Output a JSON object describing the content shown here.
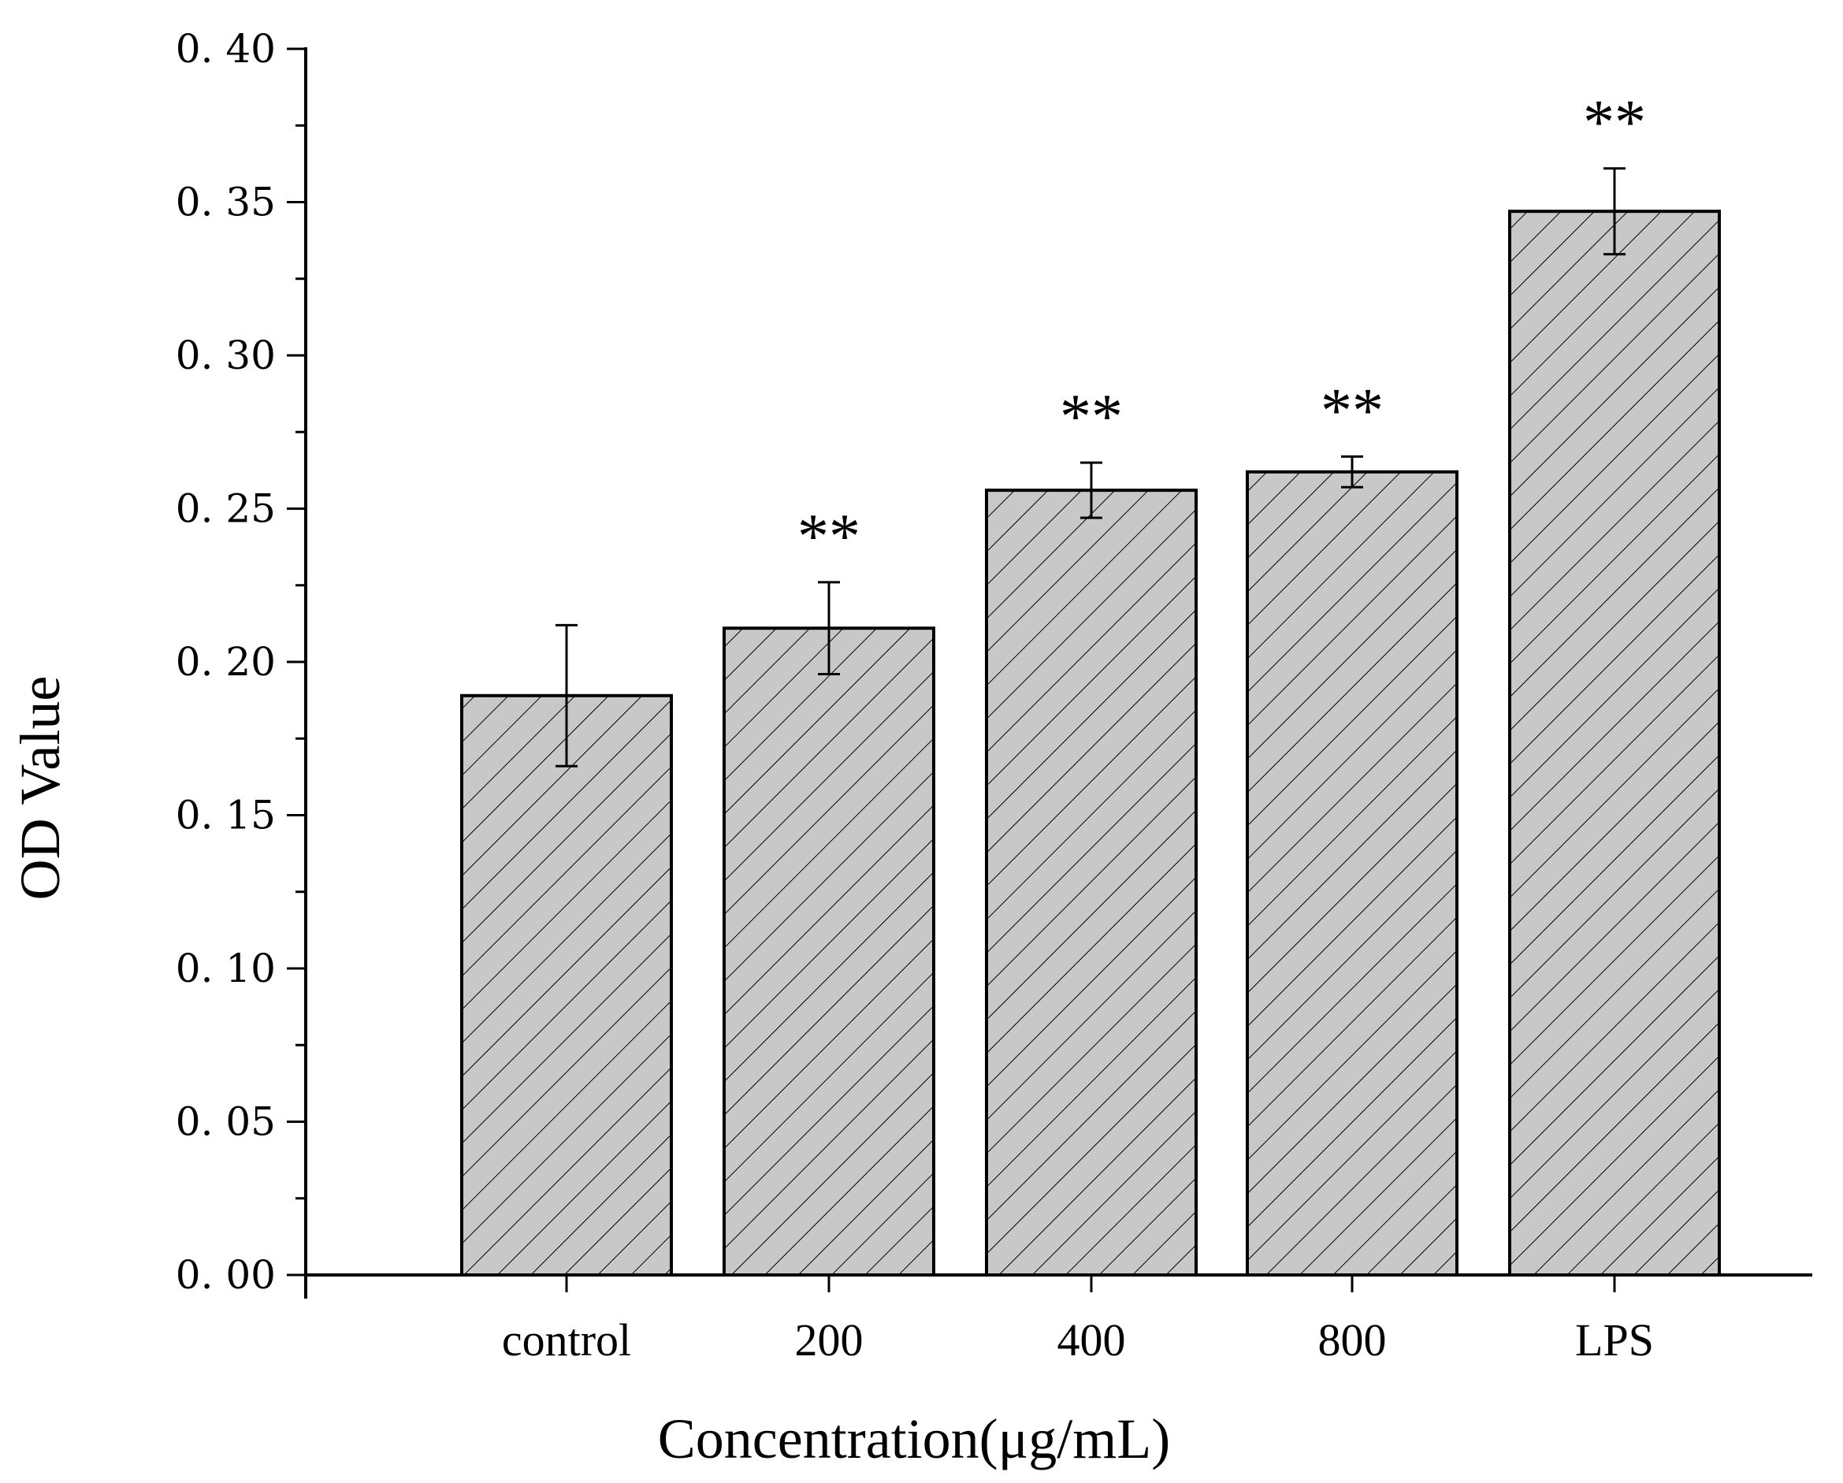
{
  "chart_data": {
    "type": "bar",
    "title": "",
    "xlabel": "Concentration(μg/mL)",
    "ylabel": "OD Value",
    "categories": [
      "control",
      "200",
      "400",
      "800",
      "LPS"
    ],
    "values": [
      0.189,
      0.211,
      0.256,
      0.262,
      0.347
    ],
    "errors": [
      0.023,
      0.015,
      0.009,
      0.005,
      0.014
    ],
    "significance": [
      "",
      "**",
      "**",
      "**",
      "**"
    ],
    "ylim": [
      0,
      0.4
    ],
    "yticks": [
      0.0,
      0.05,
      0.1,
      0.15,
      0.2,
      0.25,
      0.3,
      0.35,
      0.4
    ],
    "ytick_labels": [
      "0. 00",
      "0. 05",
      "0. 10",
      "0. 15",
      "0. 20",
      "0. 25",
      "0. 30",
      "0. 35",
      "0. 40"
    ],
    "bar_color": "#c8c8c8",
    "hatch": "diagonal",
    "grid": false,
    "legend": "none"
  }
}
